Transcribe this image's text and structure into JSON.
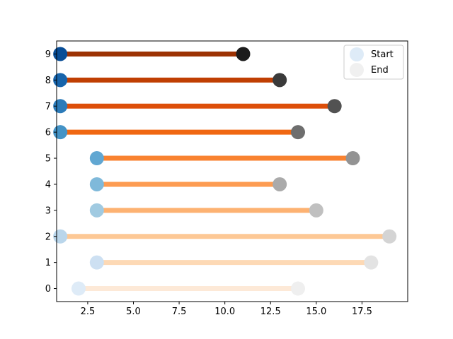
{
  "chart_data": {
    "type": "dumbbell",
    "xlim": [
      0.8,
      20.0
    ],
    "ylim": [
      -0.5,
      9.5
    ],
    "x_ticks": [
      2.5,
      5.0,
      7.5,
      10.0,
      12.5,
      15.0,
      17.5
    ],
    "x_tick_labels": [
      "2.5",
      "5.0",
      "7.5",
      "10.0",
      "12.5",
      "15.0",
      "17.5"
    ],
    "y_ticks": [
      0,
      1,
      2,
      3,
      4,
      5,
      6,
      7,
      8,
      9
    ],
    "y_tick_labels": [
      "0",
      "1",
      "2",
      "3",
      "4",
      "5",
      "6",
      "7",
      "8",
      "9"
    ],
    "grid": false,
    "legend_position": "top-right",
    "legend": [
      {
        "label": "Start",
        "color": "#deebf7"
      },
      {
        "label": "End",
        "color": "#f0f0f0"
      }
    ],
    "rows": [
      {
        "y": 0,
        "start": 2,
        "end": 14,
        "start_color": "#deebf7",
        "end_color": "#efefef",
        "line_color": "#fde9d7"
      },
      {
        "y": 1,
        "start": 3,
        "end": 18,
        "start_color": "#cde0f2",
        "end_color": "#e3e3e3",
        "line_color": "#fdd9b5"
      },
      {
        "y": 2,
        "start": 1,
        "end": 19,
        "start_color": "#bad6eb",
        "end_color": "#d4d4d4",
        "line_color": "#fdc895"
      },
      {
        "y": 3,
        "start": 3,
        "end": 15,
        "start_color": "#a0cae1",
        "end_color": "#c0c0c0",
        "line_color": "#fdb272"
      },
      {
        "y": 4,
        "start": 3,
        "end": 13,
        "start_color": "#7fb9da",
        "end_color": "#aaaaaa",
        "line_color": "#fd9c52"
      },
      {
        "y": 5,
        "start": 3,
        "end": 17,
        "start_color": "#61a7d2",
        "end_color": "#939393",
        "line_color": "#f98230"
      },
      {
        "y": 6,
        "start": 1,
        "end": 14,
        "start_color": "#4493c6",
        "end_color": "#6e6e6e",
        "line_color": "#f06712"
      },
      {
        "y": 7,
        "start": 1,
        "end": 16,
        "start_color": "#2c7bb9",
        "end_color": "#525252",
        "line_color": "#dd4e09"
      },
      {
        "y": 8,
        "start": 1,
        "end": 13,
        "start_color": "#1764ab",
        "end_color": "#3a3a3a",
        "line_color": "#c03f03"
      },
      {
        "y": 9,
        "start": 1,
        "end": 11,
        "start_color": "#084d96",
        "end_color": "#1c1c1c",
        "line_color": "#9c3203"
      }
    ]
  }
}
